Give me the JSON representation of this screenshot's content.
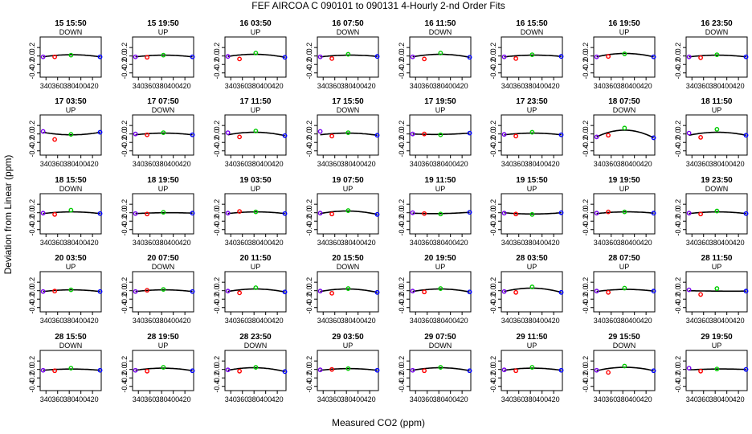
{
  "chart_data": {
    "type": "scatter",
    "title": "FEF   AIRCOA C   090101 to 090131   4-Hourly 2-nd Order Fits",
    "xlabel": "Measured CO2 (ppm)",
    "ylabel": "Deviation from Linear (ppm)",
    "xlim": [
      330,
      435
    ],
    "ylim": [
      -0.5,
      0.45
    ],
    "x_ticks": [
      340,
      360,
      380,
      400,
      420
    ],
    "y_ticks": [
      -0.4,
      -0.2,
      0,
      0.2
    ],
    "y_tick_labels": [
      "-0.4",
      "-0.2",
      "0.0",
      "0.2"
    ],
    "x_ticks_shown_on_rows": [
      0,
      1,
      2,
      3,
      4
    ],
    "standard_x": [
      335,
      355,
      383,
      433
    ],
    "point_colors": [
      "#7700ee",
      "#ff0000",
      "#00cc00",
      "#0000ff"
    ],
    "panels": [
      {
        "time": "15 15:50",
        "mode": "DOWN",
        "y": [
          -0.02,
          -0.02,
          0.02,
          -0.02
        ],
        "curve": [
          -0.02,
          -0.02,
          0.03,
          -0.02
        ]
      },
      {
        "time": "15 19:50",
        "mode": "UP",
        "y": [
          -0.02,
          -0.03,
          0.02,
          -0.02
        ],
        "curve": [
          -0.02,
          -0.01,
          0.02,
          -0.02
        ]
      },
      {
        "time": "16 03:50",
        "mode": "UP",
        "y": [
          -0.01,
          -0.07,
          0.07,
          -0.03
        ],
        "curve": [
          -0.01,
          0.02,
          0.04,
          -0.03
        ]
      },
      {
        "time": "16 07:50",
        "mode": "DOWN",
        "y": [
          -0.02,
          -0.06,
          0.04,
          -0.01
        ],
        "curve": [
          -0.02,
          0.01,
          0.02,
          -0.01
        ]
      },
      {
        "time": "16 11:50",
        "mode": "DOWN",
        "y": [
          -0.02,
          -0.07,
          0.07,
          -0.03
        ],
        "curve": [
          -0.02,
          0.01,
          0.04,
          -0.03
        ]
      },
      {
        "time": "16 15:50",
        "mode": "DOWN",
        "y": [
          -0.02,
          -0.06,
          0.03,
          -0.01
        ],
        "curve": [
          -0.02,
          0.0,
          0.02,
          -0.01
        ]
      },
      {
        "time": "16 19:50",
        "mode": "UP",
        "y": [
          -0.02,
          -0.01,
          0.05,
          -0.02
        ],
        "curve": [
          -0.02,
          0.02,
          0.06,
          -0.02
        ]
      },
      {
        "time": "16 23:50",
        "mode": "DOWN",
        "y": [
          -0.02,
          -0.04,
          0.03,
          -0.02
        ],
        "curve": [
          -0.02,
          0.0,
          0.02,
          -0.02
        ]
      },
      {
        "time": "17 03:50",
        "mode": "UP",
        "y": [
          0.06,
          -0.13,
          -0.01,
          0.04
        ],
        "curve": [
          0.04,
          -0.03,
          -0.02,
          0.04
        ]
      },
      {
        "time": "17 07:50",
        "mode": "DOWN",
        "y": [
          0.0,
          -0.02,
          0.03,
          -0.02
        ],
        "curve": [
          -0.02,
          0.0,
          0.02,
          -0.02
        ]
      },
      {
        "time": "17 11:50",
        "mode": "UP",
        "y": [
          0.03,
          -0.07,
          0.07,
          -0.04
        ],
        "curve": [
          -0.02,
          0.0,
          0.04,
          -0.04
        ]
      },
      {
        "time": "17 15:50",
        "mode": "DOWN",
        "y": [
          0.06,
          -0.05,
          0.03,
          -0.03
        ],
        "curve": [
          -0.02,
          0.0,
          0.02,
          -0.03
        ]
      },
      {
        "time": "17 19:50",
        "mode": "UP",
        "y": [
          0.0,
          0.0,
          -0.02,
          0.02
        ],
        "curve": [
          0.0,
          0.0,
          -0.01,
          0.02
        ]
      },
      {
        "time": "17 23:50",
        "mode": "UP",
        "y": [
          -0.01,
          -0.05,
          0.04,
          -0.02
        ],
        "curve": [
          -0.02,
          0.0,
          0.02,
          -0.02
        ]
      },
      {
        "time": "18 07:50",
        "mode": "DOWN",
        "y": [
          -0.07,
          -0.03,
          0.14,
          -0.09
        ],
        "curve": [
          -0.07,
          0.04,
          0.09,
          -0.09
        ]
      },
      {
        "time": "18 11:50",
        "mode": "UP",
        "y": [
          0.02,
          -0.08,
          0.11,
          -0.03
        ],
        "curve": [
          -0.03,
          0.0,
          0.04,
          -0.03
        ]
      },
      {
        "time": "18 15:50",
        "mode": "DOWN",
        "y": [
          -0.01,
          -0.04,
          0.06,
          -0.02
        ],
        "curve": [
          -0.02,
          0.0,
          0.02,
          -0.02
        ]
      },
      {
        "time": "18 19:50",
        "mode": "UP",
        "y": [
          -0.02,
          -0.03,
          0.01,
          -0.01
        ],
        "curve": [
          -0.02,
          -0.01,
          0.0,
          -0.01
        ]
      },
      {
        "time": "19 03:50",
        "mode": "UP",
        "y": [
          -0.01,
          0.03,
          0.02,
          -0.02
        ],
        "curve": [
          -0.02,
          0.01,
          0.02,
          -0.02
        ]
      },
      {
        "time": "19 07:50",
        "mode": "UP",
        "y": [
          -0.01,
          -0.03,
          0.05,
          -0.04
        ],
        "curve": [
          -0.02,
          0.02,
          0.04,
          -0.04
        ]
      },
      {
        "time": "19 11:50",
        "mode": "UP",
        "y": [
          0.0,
          -0.02,
          -0.03,
          0.01
        ],
        "curve": [
          -0.01,
          -0.02,
          -0.02,
          0.01
        ]
      },
      {
        "time": "19 15:50",
        "mode": "UP",
        "y": [
          -0.01,
          -0.03,
          -0.04,
          0.0
        ],
        "curve": [
          0.0,
          -0.02,
          -0.03,
          0.0
        ]
      },
      {
        "time": "19 19:50",
        "mode": "UP",
        "y": [
          -0.01,
          0.02,
          0.02,
          -0.01
        ],
        "curve": [
          -0.02,
          0.0,
          0.02,
          -0.01
        ]
      },
      {
        "time": "19 23:50",
        "mode": "DOWN",
        "y": [
          -0.01,
          -0.03,
          0.04,
          -0.02
        ],
        "curve": [
          -0.02,
          0.0,
          0.02,
          -0.02
        ]
      },
      {
        "time": "20 03:50",
        "mode": "UP",
        "y": [
          -0.02,
          -0.01,
          0.02,
          -0.02
        ],
        "curve": [
          -0.02,
          0.0,
          0.02,
          -0.02
        ]
      },
      {
        "time": "20 07:50",
        "mode": "DOWN",
        "y": [
          -0.02,
          0.01,
          0.03,
          -0.02
        ],
        "curve": [
          -0.02,
          0.0,
          0.02,
          -0.02
        ]
      },
      {
        "time": "20 11:50",
        "mode": "UP",
        "y": [
          -0.01,
          -0.05,
          0.07,
          -0.03
        ],
        "curve": [
          -0.02,
          0.01,
          0.04,
          -0.03
        ]
      },
      {
        "time": "20 15:50",
        "mode": "DOWN",
        "y": [
          -0.01,
          -0.06,
          0.05,
          -0.04
        ],
        "curve": [
          -0.02,
          0.01,
          0.04,
          -0.04
        ]
      },
      {
        "time": "20 19:50",
        "mode": "UP",
        "y": [
          -0.01,
          -0.03,
          0.05,
          -0.03
        ],
        "curve": [
          -0.02,
          0.02,
          0.04,
          -0.03
        ]
      },
      {
        "time": "28 03:50",
        "mode": "UP",
        "y": [
          -0.02,
          -0.04,
          0.09,
          -0.04
        ],
        "curve": [
          -0.02,
          0.03,
          0.06,
          -0.04
        ]
      },
      {
        "time": "28 07:50",
        "mode": "UP",
        "y": [
          -0.01,
          -0.04,
          0.06,
          -0.01
        ],
        "curve": [
          -0.02,
          0.01,
          0.03,
          -0.01
        ]
      },
      {
        "time": "28 11:50",
        "mode": "UP",
        "y": [
          0.02,
          -0.09,
          0.05,
          -0.01
        ],
        "curve": [
          0.0,
          -0.02,
          -0.01,
          -0.01
        ]
      },
      {
        "time": "28 15:50",
        "mode": "DOWN",
        "y": [
          -0.02,
          -0.03,
          0.03,
          -0.02
        ],
        "curve": [
          -0.02,
          -0.01,
          0.01,
          -0.02
        ]
      },
      {
        "time": "28 19:50",
        "mode": "UP",
        "y": [
          -0.02,
          -0.04,
          0.05,
          -0.03
        ],
        "curve": [
          -0.02,
          0.0,
          0.03,
          -0.03
        ]
      },
      {
        "time": "28 23:50",
        "mode": "DOWN",
        "y": [
          -0.01,
          -0.04,
          0.05,
          -0.05
        ],
        "curve": [
          -0.02,
          0.01,
          0.04,
          -0.05
        ]
      },
      {
        "time": "29 03:50",
        "mode": "UP",
        "y": [
          -0.01,
          0.0,
          0.02,
          -0.02
        ],
        "curve": [
          -0.02,
          0.0,
          0.02,
          -0.02
        ]
      },
      {
        "time": "29 07:50",
        "mode": "DOWN",
        "y": [
          -0.02,
          -0.03,
          0.05,
          -0.03
        ],
        "curve": [
          -0.02,
          0.01,
          0.04,
          -0.03
        ]
      },
      {
        "time": "29 11:50",
        "mode": "UP",
        "y": [
          -0.01,
          -0.03,
          0.05,
          -0.02
        ],
        "curve": [
          -0.02,
          0.01,
          0.03,
          -0.02
        ]
      },
      {
        "time": "29 15:50",
        "mode": "DOWN",
        "y": [
          -0.02,
          -0.07,
          0.08,
          -0.03
        ],
        "curve": [
          -0.03,
          0.02,
          0.05,
          -0.03
        ]
      },
      {
        "time": "29 19:50",
        "mode": "UP",
        "y": [
          0.03,
          -0.04,
          0.01,
          0.0
        ],
        "curve": [
          -0.01,
          0.0,
          0.01,
          0.0
        ]
      }
    ]
  }
}
